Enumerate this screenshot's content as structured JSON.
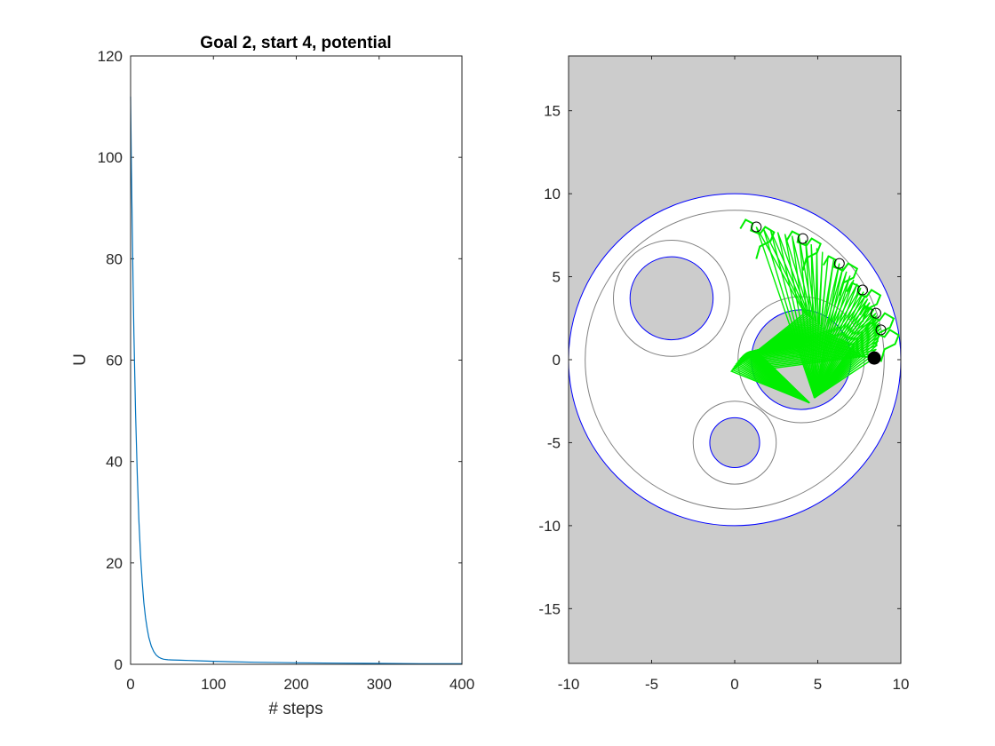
{
  "chart_data": [
    {
      "type": "line",
      "title": "Goal 2, start 4, potential",
      "xlabel": "# steps",
      "ylabel": "U",
      "xlim": [
        0,
        400
      ],
      "ylim": [
        0,
        120
      ],
      "xticks": [
        0,
        100,
        200,
        300,
        400
      ],
      "yticks": [
        0,
        20,
        40,
        60,
        80,
        100,
        120
      ],
      "grid": false,
      "line_color": "#0072BD",
      "series": [
        {
          "x": [
            0,
            1,
            2,
            3,
            4,
            5,
            6,
            8,
            10,
            12,
            14,
            16,
            18,
            20,
            22,
            25,
            28,
            31,
            34,
            37,
            40,
            45,
            50,
            60,
            70,
            80,
            100,
            120,
            150,
            200,
            250,
            300,
            350,
            400
          ],
          "y": [
            112,
            98,
            86,
            75,
            65.5,
            57,
            49.5,
            37.5,
            28.5,
            21.5,
            16.2,
            12.2,
            9.2,
            7.0,
            5.3,
            3.6,
            2.5,
            1.8,
            1.4,
            1.15,
            1.0,
            0.9,
            0.85,
            0.8,
            0.75,
            0.7,
            0.6,
            0.5,
            0.4,
            0.3,
            0.22,
            0.17,
            0.13,
            0.1
          ]
        }
      ]
    },
    {
      "type": "scatter",
      "title": "",
      "xlabel": "",
      "ylabel": "",
      "xlim": [
        -10,
        10
      ],
      "ylim": [
        -18.3,
        18.3
      ],
      "xticks": [
        -10,
        -5,
        0,
        5,
        10
      ],
      "yticks": [
        -15,
        -10,
        -5,
        0,
        5,
        10,
        15
      ],
      "grid": false,
      "obstacle_fill": "#cccccc",
      "boundary_color": "#0000ff",
      "influence_color": "#808080",
      "arm_color": "#00ee00",
      "obstacles": [
        {
          "cx": 0,
          "cy": 0,
          "r": 10,
          "influence_r": 9,
          "kind": "workspace"
        },
        {
          "cx": -3.8,
          "cy": 3.7,
          "r": 2.5,
          "influence_r": 3.5,
          "kind": "obstacle"
        },
        {
          "cx": 0,
          "cy": -5,
          "r": 1.5,
          "influence_r": 2.5,
          "kind": "obstacle"
        },
        {
          "cx": 4.0,
          "cy": 0,
          "r": 3.0,
          "influence_r": 3.8,
          "kind": "obstacle"
        }
      ],
      "end_effector_path": [
        {
          "x": 1.3,
          "y": 8.0
        },
        {
          "x": 4.1,
          "y": 7.3
        },
        {
          "x": 6.3,
          "y": 5.8
        },
        {
          "x": 7.7,
          "y": 4.2
        },
        {
          "x": 8.5,
          "y": 2.8
        },
        {
          "x": 8.8,
          "y": 1.8
        },
        {
          "x": 8.4,
          "y": 0.1
        }
      ],
      "arm_base": {
        "x": 4.5,
        "y": -2.6
      }
    }
  ]
}
